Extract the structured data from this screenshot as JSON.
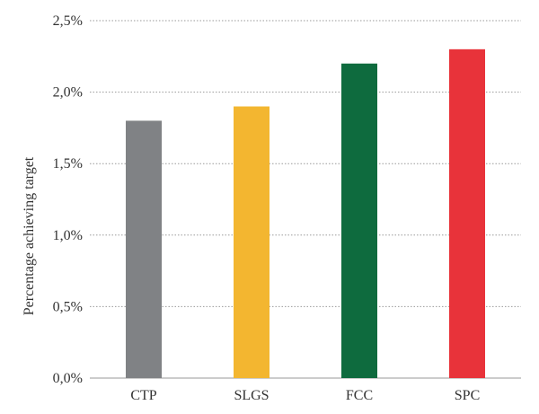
{
  "chart_data": {
    "type": "bar",
    "title": "",
    "xlabel": "",
    "ylabel": "Percentage achieving target",
    "categories": [
      "CTP",
      "SLGS",
      "FCC",
      "SPC"
    ],
    "values": [
      1.8,
      1.9,
      2.2,
      2.3
    ],
    "colors": [
      "#808285",
      "#F3B630",
      "#0E6B3E",
      "#E8333A"
    ],
    "ylim": [
      0,
      2.5
    ],
    "yticks": [
      0,
      0.5,
      1.0,
      1.5,
      2.0,
      2.5
    ],
    "ytick_labels": [
      "0,0%",
      "0,5%",
      "1,0%",
      "1,5%",
      "2,0%",
      "2,5%"
    ],
    "grid": true,
    "legend": "none"
  }
}
